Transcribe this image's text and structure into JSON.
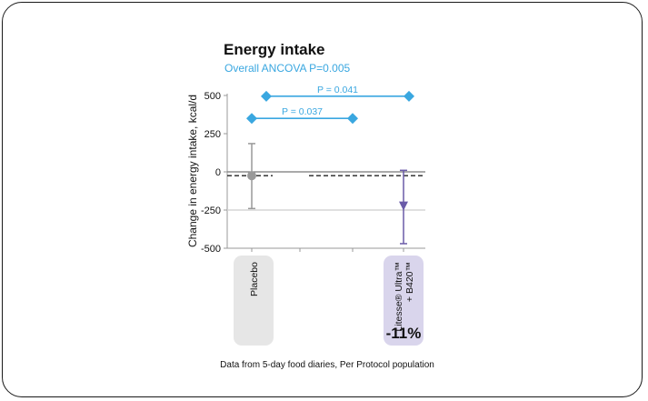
{
  "chart_data": {
    "type": "scatter",
    "title": "Energy intake",
    "subtitle": "Overall ANCOVA P=0.005",
    "ylabel": "Change in energy intake, kcal/d",
    "ylim": [
      -500,
      500
    ],
    "yticks": [
      "500",
      "250",
      "0",
      "-250",
      "-500"
    ],
    "ytick_values": [
      500,
      250,
      0,
      -250,
      -500
    ],
    "grid": true,
    "categories": [
      {
        "label": "Placebo",
        "value": -25,
        "err_low": -240,
        "err_high": 185,
        "color": "#999999",
        "box_color": "#e6e6e6",
        "marker": "circle"
      },
      {
        "label_line1": "Litesse® Ultra™",
        "label_line2": "+ B420™",
        "value": -230,
        "err_low": -470,
        "err_high": 10,
        "color": "#6a5ba8",
        "box_color": "#d9d5ec",
        "marker": "triangle",
        "annotation": "-11%"
      }
    ],
    "reference_line": -25,
    "comparisons": [
      {
        "label": "P = 0.041",
        "y": 495,
        "from_group": 0,
        "to_group": 3
      },
      {
        "label": "P = 0.037",
        "y": 350,
        "from_group": 0,
        "to_group": 2
      }
    ],
    "comparison_color": "#3aa7e0",
    "footnote": "Data from 5-day food diaries, Per Protocol population"
  }
}
